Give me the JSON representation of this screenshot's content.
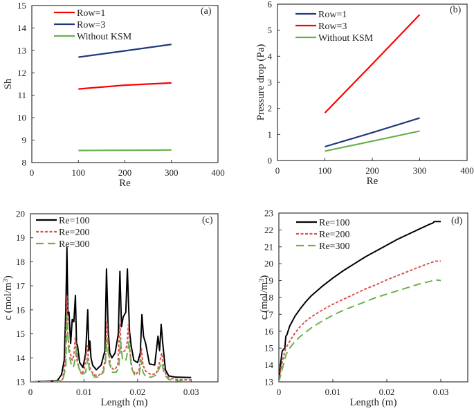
{
  "chart_data": [
    {
      "id": "a",
      "type": "line",
      "panel_label": "(a)",
      "title": "",
      "xlabel": "Re",
      "ylabel": "Sh",
      "xlim": [
        0,
        400
      ],
      "ylim": [
        8,
        15
      ],
      "xticks": [
        0,
        100,
        200,
        300,
        400
      ],
      "yticks": [
        8,
        9,
        10,
        11,
        12,
        13,
        14,
        15
      ],
      "grid": false,
      "legend_position": "top-left",
      "series": [
        {
          "name": "Row=1",
          "color": "#ff0000",
          "dash": "solid",
          "x": [
            100,
            200,
            300
          ],
          "y": [
            11.28,
            11.45,
            11.55
          ]
        },
        {
          "name": "Row=3",
          "color": "#1f3a7a",
          "dash": "solid",
          "x": [
            100,
            200,
            300
          ],
          "y": [
            12.7,
            12.98,
            13.27
          ]
        },
        {
          "name": "Without KSM",
          "color": "#6ab04c",
          "dash": "solid",
          "x": [
            100,
            200,
            300
          ],
          "y": [
            8.54,
            8.55,
            8.56
          ]
        }
      ]
    },
    {
      "id": "b",
      "type": "line",
      "panel_label": "(b)",
      "title": "",
      "xlabel": "Re",
      "ylabel": "Pressure drop (Pa)",
      "xlim": [
        0,
        400
      ],
      "ylim": [
        0,
        6
      ],
      "xticks": [
        0,
        100,
        200,
        300,
        400
      ],
      "yticks": [
        0,
        1,
        2,
        3,
        4,
        5,
        6
      ],
      "grid": false,
      "legend_position": "top-left",
      "series": [
        {
          "name": "Row=1",
          "color": "#1f3a7a",
          "dash": "solid",
          "x": [
            100,
            200,
            300
          ],
          "y": [
            0.53,
            1.07,
            1.63
          ]
        },
        {
          "name": "Row=3",
          "color": "#ff0000",
          "dash": "solid",
          "x": [
            100,
            200,
            300
          ],
          "y": [
            1.83,
            3.7,
            5.6
          ]
        },
        {
          "name": "Without KSM",
          "color": "#6ab04c",
          "dash": "solid",
          "x": [
            100,
            200,
            300
          ],
          "y": [
            0.36,
            0.74,
            1.13
          ]
        }
      ]
    },
    {
      "id": "c",
      "type": "line",
      "panel_label": "(c)",
      "title": "",
      "xlabel": "Length (m)",
      "ylabel": "c (mol/m³)",
      "xlim": [
        0,
        0.035
      ],
      "ylim": [
        13,
        20
      ],
      "xticks": [
        0,
        0.01,
        0.02,
        0.03
      ],
      "xtick_labels": [
        "0",
        "0.01",
        "0.02",
        "0.03"
      ],
      "yticks": [
        13,
        14,
        15,
        16,
        17,
        18,
        19,
        20
      ],
      "grid": false,
      "legend_position": "top-left",
      "series": [
        {
          "name": "Re=100",
          "color": "#000000",
          "dash": "solid",
          "x": [
            0,
            0.003,
            0.005,
            0.0058,
            0.0063,
            0.0066,
            0.0068,
            0.007,
            0.0072,
            0.0075,
            0.0078,
            0.0081,
            0.0084,
            0.0086,
            0.0088,
            0.0092,
            0.0098,
            0.0103,
            0.0107,
            0.0109,
            0.0111,
            0.0113,
            0.0116,
            0.0123,
            0.0132,
            0.0139,
            0.0142,
            0.0145,
            0.0148,
            0.0152,
            0.0158,
            0.0164,
            0.0167,
            0.017,
            0.0173,
            0.0178,
            0.0181,
            0.0183,
            0.0185,
            0.0188,
            0.0193,
            0.02,
            0.0205,
            0.0208,
            0.0211,
            0.0215,
            0.0222,
            0.0232,
            0.0238,
            0.0241,
            0.0244,
            0.0247,
            0.0252,
            0.0258,
            0.027,
            0.03
          ],
          "y": [
            13.0,
            13.02,
            13.05,
            13.3,
            13.9,
            16.0,
            18.6,
            15.8,
            15.9,
            14.6,
            15.6,
            15.5,
            16.6,
            14.6,
            14.5,
            13.8,
            13.6,
            14.2,
            16.0,
            14.3,
            14.7,
            14.0,
            13.7,
            13.5,
            13.7,
            14.3,
            17.7,
            15.2,
            14.2,
            14.0,
            14.2,
            15.0,
            17.6,
            15.3,
            15.7,
            15.9,
            17.7,
            16.3,
            15.1,
            14.5,
            13.9,
            13.8,
            14.2,
            15.8,
            14.9,
            14.6,
            13.75,
            13.7,
            14.9,
            14.3,
            15.4,
            14.6,
            13.5,
            13.25,
            13.2,
            13.18
          ]
        },
        {
          "name": "Re=200",
          "color": "#d9534f",
          "dash": "short-dash",
          "x": [
            0,
            0.003,
            0.005,
            0.006,
            0.0065,
            0.0068,
            0.007,
            0.0073,
            0.0078,
            0.0081,
            0.0084,
            0.0086,
            0.009,
            0.0096,
            0.0101,
            0.0106,
            0.0109,
            0.0112,
            0.0118,
            0.0126,
            0.0135,
            0.014,
            0.0143,
            0.0146,
            0.015,
            0.0157,
            0.0163,
            0.0167,
            0.017,
            0.0176,
            0.018,
            0.0183,
            0.0186,
            0.019,
            0.0197,
            0.0203,
            0.0207,
            0.021,
            0.0215,
            0.0225,
            0.0235,
            0.0241,
            0.0245,
            0.0249,
            0.0256,
            0.027,
            0.03
          ],
          "y": [
            13.0,
            13.0,
            13.03,
            13.1,
            13.8,
            16.6,
            14.9,
            14.3,
            13.9,
            14.1,
            14.9,
            14.0,
            13.6,
            13.3,
            13.6,
            14.5,
            13.8,
            13.5,
            13.3,
            13.25,
            13.4,
            14.0,
            15.5,
            14.2,
            13.6,
            13.5,
            13.7,
            15.4,
            14.2,
            14.3,
            14.5,
            15.4,
            14.2,
            13.5,
            13.3,
            13.5,
            14.4,
            13.7,
            13.45,
            13.3,
            13.35,
            13.8,
            14.2,
            13.5,
            13.2,
            13.1,
            13.08
          ]
        },
        {
          "name": "Re=300",
          "color": "#6ab04c",
          "dash": "long-dash",
          "x": [
            0,
            0.003,
            0.005,
            0.006,
            0.0066,
            0.0068,
            0.0071,
            0.0075,
            0.008,
            0.0083,
            0.0086,
            0.009,
            0.0096,
            0.0103,
            0.0107,
            0.011,
            0.0113,
            0.012,
            0.0128,
            0.0136,
            0.014,
            0.0143,
            0.0147,
            0.0153,
            0.016,
            0.0165,
            0.0168,
            0.0172,
            0.0178,
            0.0182,
            0.0184,
            0.0188,
            0.0194,
            0.0203,
            0.0207,
            0.021,
            0.0216,
            0.0226,
            0.0236,
            0.0241,
            0.0245,
            0.025,
            0.0258,
            0.027,
            0.029
          ],
          "y": [
            13.0,
            13.0,
            13.02,
            13.05,
            13.6,
            15.8,
            14.4,
            13.8,
            13.6,
            13.9,
            14.4,
            13.6,
            13.3,
            13.4,
            14.0,
            13.5,
            13.4,
            13.2,
            13.2,
            13.4,
            13.8,
            14.8,
            13.8,
            13.4,
            13.4,
            13.6,
            14.7,
            13.9,
            13.9,
            14.3,
            14.7,
            13.6,
            13.3,
            13.3,
            13.9,
            13.4,
            13.2,
            13.2,
            13.3,
            13.6,
            13.8,
            13.3,
            13.1,
            13.05,
            13.03
          ]
        }
      ]
    },
    {
      "id": "d",
      "type": "line",
      "panel_label": "(d)",
      "title": "",
      "xlabel": "Length (m)",
      "ylabel": "c (mol/m³)",
      "xlim": [
        0,
        0.035
      ],
      "ylim": [
        13,
        23
      ],
      "xticks": [
        0,
        0.01,
        0.02,
        0.03
      ],
      "xtick_labels": [
        "0",
        "0.01",
        "0.02",
        "0.03"
      ],
      "yticks": [
        13,
        14,
        15,
        16,
        17,
        18,
        19,
        20,
        21,
        22,
        23
      ],
      "grid": false,
      "legend_position": "top-left",
      "series": [
        {
          "name": "Re=100",
          "color": "#000000",
          "dash": "solid",
          "x": [
            0,
            0.0003,
            0.0006,
            0.0008,
            0.0011,
            0.0013,
            0.0015,
            0.002,
            0.003,
            0.004,
            0.005,
            0.006,
            0.008,
            0.01,
            0.012,
            0.014,
            0.016,
            0.018,
            0.02,
            0.022,
            0.024,
            0.026,
            0.028,
            0.0285,
            0.0288,
            0.03
          ],
          "y": [
            13.0,
            14.0,
            14.8,
            14.9,
            15.0,
            15.7,
            15.8,
            16.3,
            16.9,
            17.35,
            17.75,
            18.1,
            18.65,
            19.15,
            19.6,
            20.0,
            20.4,
            20.75,
            21.1,
            21.45,
            21.75,
            22.05,
            22.35,
            22.4,
            22.5,
            22.5
          ]
        },
        {
          "name": "Re=200",
          "color": "#d9534f",
          "dash": "short-dash",
          "x": [
            0,
            0.0005,
            0.001,
            0.0013,
            0.002,
            0.003,
            0.004,
            0.005,
            0.006,
            0.008,
            0.01,
            0.012,
            0.014,
            0.016,
            0.018,
            0.02,
            0.022,
            0.024,
            0.026,
            0.028,
            0.029,
            0.03
          ],
          "y": [
            13.0,
            14.0,
            14.7,
            15.0,
            15.4,
            15.9,
            16.3,
            16.6,
            16.85,
            17.25,
            17.6,
            17.9,
            18.2,
            18.5,
            18.75,
            19.05,
            19.3,
            19.55,
            19.8,
            20.05,
            20.15,
            20.15
          ]
        },
        {
          "name": "Re=300",
          "color": "#6ab04c",
          "dash": "long-dash",
          "x": [
            0,
            0.0005,
            0.001,
            0.0013,
            0.0016,
            0.002,
            0.003,
            0.004,
            0.005,
            0.006,
            0.008,
            0.01,
            0.012,
            0.014,
            0.016,
            0.018,
            0.02,
            0.022,
            0.024,
            0.026,
            0.028,
            0.029,
            0.03
          ],
          "y": [
            13.0,
            13.6,
            14.2,
            14.6,
            14.8,
            15.0,
            15.4,
            15.7,
            15.95,
            16.2,
            16.6,
            16.95,
            17.25,
            17.5,
            17.75,
            18.0,
            18.2,
            18.4,
            18.6,
            18.8,
            18.95,
            19.05,
            19.0
          ]
        }
      ]
    }
  ]
}
